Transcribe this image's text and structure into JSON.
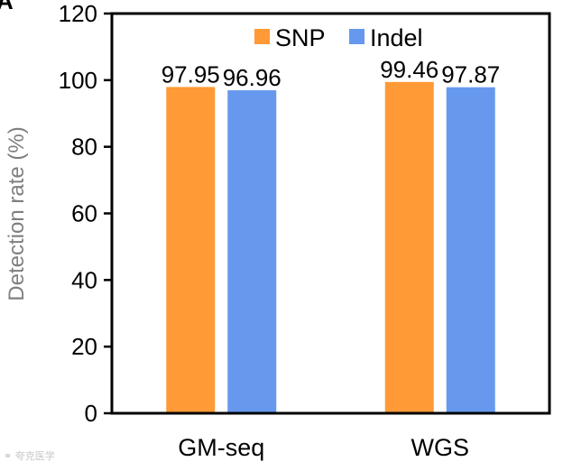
{
  "panel_letter": "A",
  "watermark_text": "夸克医学",
  "chart_data": {
    "type": "bar",
    "title": "",
    "ylabel": "Detection rate (%)",
    "xlabel": "",
    "categories": [
      "GM-seq",
      "WGS"
    ],
    "series": [
      {
        "name": "SNP",
        "color": "#ff9a36",
        "values": [
          97.95,
          99.46
        ],
        "labels": [
          "97.95",
          "99.46"
        ]
      },
      {
        "name": "Indel",
        "color": "#6699ee",
        "values": [
          96.96,
          97.87
        ],
        "labels": [
          "96.96",
          "97.87"
        ]
      }
    ],
    "ylim": [
      0,
      120
    ],
    "yticks": [
      0,
      20,
      40,
      60,
      80,
      100,
      120
    ],
    "grid": false,
    "legend": "top"
  }
}
